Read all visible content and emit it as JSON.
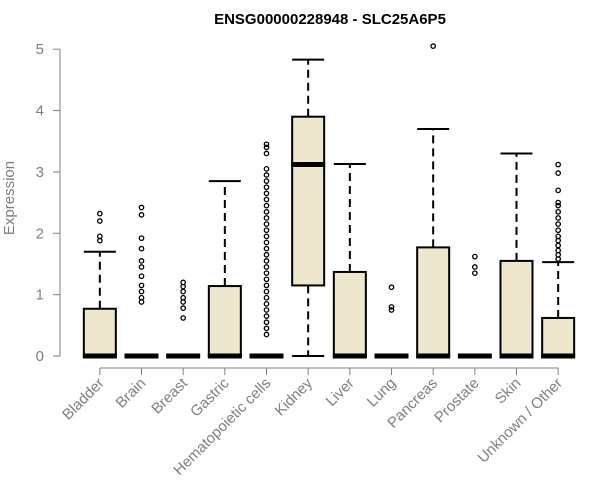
{
  "chart_data": {
    "type": "boxplot",
    "title": "ENSG00000228948 - SLC25A6P5",
    "ylabel": "Expression",
    "xlabel": "",
    "ylim": [
      0,
      5.15
    ],
    "yticks": [
      0,
      1,
      2,
      3,
      4,
      5
    ],
    "grid": false,
    "legend": "none",
    "categories": [
      "Bladder",
      "Brain",
      "Breast",
      "Gastric",
      "Hematopoietic cells",
      "Kidney",
      "Liver",
      "Lung",
      "Pancreas",
      "Prostate",
      "Skin",
      "Unknown / Other"
    ],
    "boxes": [
      {
        "q1": 0,
        "median": 0,
        "q3": 0.77,
        "whisker_low": 0,
        "whisker_high": 1.7,
        "outliers": [
          1.88,
          1.95,
          2.2,
          2.32
        ]
      },
      {
        "q1": 0,
        "median": 0,
        "q3": 0,
        "whisker_low": 0,
        "whisker_high": 0,
        "outliers": [
          0.88,
          0.95,
          1.05,
          1.15,
          1.3,
          1.45,
          1.55,
          1.75,
          1.92,
          2.3,
          2.42
        ]
      },
      {
        "q1": 0,
        "median": 0,
        "q3": 0,
        "whisker_low": 0,
        "whisker_high": 0,
        "outliers": [
          0.62,
          0.78,
          0.88,
          0.95,
          1.05,
          1.13,
          1.2
        ]
      },
      {
        "q1": 0,
        "median": 0,
        "q3": 1.14,
        "whisker_low": 0,
        "whisker_high": 2.85,
        "outliers": []
      },
      {
        "q1": 0,
        "median": 0,
        "q3": 0,
        "whisker_low": 0,
        "whisker_high": 0,
        "outliers": [
          0.35,
          0.45,
          0.55,
          0.65,
          0.75,
          0.85,
          0.95,
          1.05,
          1.15,
          1.25,
          1.35,
          1.45,
          1.55,
          1.65,
          1.75,
          1.85,
          1.95,
          2.05,
          2.15,
          2.25,
          2.35,
          2.45,
          2.55,
          2.65,
          2.75,
          2.85,
          2.95,
          3.05,
          3.3,
          3.4,
          3.45
        ]
      },
      {
        "q1": 1.15,
        "median": 3.12,
        "q3": 3.9,
        "whisker_low": 0,
        "whisker_high": 4.83,
        "outliers": []
      },
      {
        "q1": 0,
        "median": 0,
        "q3": 1.37,
        "whisker_low": 0,
        "whisker_high": 3.13,
        "outliers": []
      },
      {
        "q1": 0,
        "median": 0,
        "q3": 0,
        "whisker_low": 0,
        "whisker_high": 0,
        "outliers": [
          0.75,
          0.8,
          1.12
        ]
      },
      {
        "q1": 0,
        "median": 0,
        "q3": 1.77,
        "whisker_low": 0,
        "whisker_high": 3.7,
        "outliers": [
          5.05
        ]
      },
      {
        "q1": 0,
        "median": 0,
        "q3": 0,
        "whisker_low": 0,
        "whisker_high": 0,
        "outliers": [
          1.35,
          1.45,
          1.62
        ]
      },
      {
        "q1": 0,
        "median": 0,
        "q3": 1.55,
        "whisker_low": 0,
        "whisker_high": 3.3,
        "outliers": []
      },
      {
        "q1": 0,
        "median": 0,
        "q3": 0.62,
        "whisker_low": 0,
        "whisker_high": 1.53,
        "outliers": [
          1.58,
          1.65,
          1.72,
          1.8,
          1.88,
          1.95,
          2.05,
          2.15,
          2.25,
          2.35,
          2.45,
          2.5,
          2.7,
          2.98,
          3.12
        ]
      }
    ]
  },
  "colors": {
    "box_fill": "#ede7cd",
    "box_stroke": "#000000",
    "axis": "#7f7f7f",
    "tick_text": "#7f7f7f",
    "title": "#000000"
  }
}
